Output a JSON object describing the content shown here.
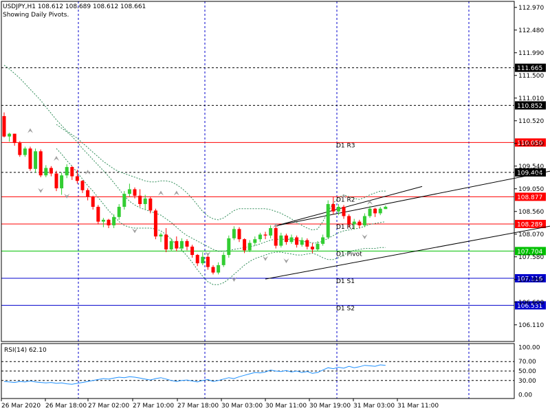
{
  "header": {
    "symbol_line": "USDJPY,H1  108.612 108.689 108.612 108.661",
    "subtitle": "Showing Daily Pivots."
  },
  "colors": {
    "bull": "#32cd32",
    "bear": "#ff0000",
    "resistance": "#ff0000",
    "pivot": "#00c000",
    "support": "#0000cc",
    "band": "#2e8b57",
    "rsi_line": "#1e90ff",
    "grid": "#0000cc",
    "fractal": "#a0a0a0"
  },
  "chart_data": [
    {
      "type": "candlestick",
      "symbol": "USDJPY",
      "timeframe": "H1",
      "title": "USDJPY,H1  108.612 108.689 108.612 108.661",
      "subtitle": "Showing Daily Pivots.",
      "ylim": [
        105.75,
        113.1
      ],
      "y_ticks": [
        "112.970",
        "112.480",
        "111.990",
        "111.500",
        "111.010",
        "110.520",
        "110.030",
        "109.540",
        "109.050",
        "108.560",
        "108.070",
        "107.580",
        "107.090",
        "106.600",
        "106.110"
      ],
      "x_ticks": [
        "26 Mar 2020",
        "26 Mar 18:00",
        "27 Mar 02:00",
        "27 Mar 10:00",
        "27 Mar 18:00",
        "30 Mar 03:00",
        "30 Mar 11:00",
        "30 Mar 19:00",
        "31 Mar 03:00",
        "31 Mar 11:00"
      ],
      "horizontal_levels": [
        {
          "label": "111.665",
          "value": 111.665,
          "style": "dashed",
          "kind": "level"
        },
        {
          "label": "110.852",
          "value": 110.852,
          "style": "dashed",
          "kind": "level"
        },
        {
          "label": "110.050",
          "value": 110.05,
          "text": "D1 R3",
          "kind": "resistance"
        },
        {
          "label": "109.404",
          "value": 109.404,
          "style": "dashed",
          "kind": "level"
        },
        {
          "label": "108.877",
          "value": 108.877,
          "text": "D1 R2",
          "kind": "resistance"
        },
        {
          "label": "108.289",
          "value": 108.289,
          "text": "D1 R1",
          "kind": "resistance"
        },
        {
          "label": "107.704",
          "value": 107.704,
          "text": "D1 Pivot",
          "kind": "pivot"
        },
        {
          "label": "107.116",
          "value": 107.116,
          "text": "D1 S1",
          "kind": "support"
        },
        {
          "label": "106.531",
          "value": 106.531,
          "text": "D1 S2",
          "kind": "support"
        }
      ],
      "candles": [
        [
          110.62,
          110.7,
          110.16,
          110.18
        ],
        [
          110.18,
          110.26,
          110.07,
          110.24
        ],
        [
          110.24,
          110.24,
          109.98,
          110.04
        ],
        [
          110.04,
          110.08,
          109.74,
          109.78
        ],
        [
          109.78,
          109.96,
          109.74,
          109.92
        ],
        [
          109.92,
          109.96,
          109.44,
          109.48
        ],
        [
          109.48,
          109.92,
          109.4,
          109.86
        ],
        [
          109.86,
          109.9,
          109.3,
          109.34
        ],
        [
          109.34,
          109.56,
          109.3,
          109.5
        ],
        [
          109.5,
          109.54,
          109.32,
          109.38
        ],
        [
          109.38,
          109.44,
          109.0,
          109.06
        ],
        [
          109.06,
          109.4,
          108.92,
          109.34
        ],
        [
          109.34,
          109.58,
          109.28,
          109.52
        ],
        [
          109.52,
          109.54,
          109.24,
          109.32
        ],
        [
          109.32,
          109.46,
          109.16,
          109.22
        ],
        [
          109.22,
          109.24,
          108.96,
          109.02
        ],
        [
          109.02,
          109.06,
          108.8,
          108.88
        ],
        [
          108.88,
          108.9,
          108.6,
          108.66
        ],
        [
          108.66,
          108.7,
          108.28,
          108.34
        ],
        [
          108.34,
          108.42,
          108.22,
          108.38
        ],
        [
          108.38,
          108.4,
          108.2,
          108.26
        ],
        [
          108.26,
          108.5,
          108.2,
          108.44
        ],
        [
          108.44,
          108.72,
          108.38,
          108.66
        ],
        [
          108.66,
          109.0,
          108.6,
          108.94
        ],
        [
          108.94,
          109.16,
          108.88,
          109.04
        ],
        [
          109.04,
          109.08,
          108.84,
          108.9
        ],
        [
          108.9,
          109.04,
          108.66,
          108.72
        ],
        [
          108.72,
          108.92,
          108.6,
          108.84
        ],
        [
          108.84,
          108.88,
          108.52,
          108.58
        ],
        [
          108.58,
          108.62,
          107.96,
          108.02
        ],
        [
          108.02,
          108.1,
          107.9,
          108.06
        ],
        [
          108.06,
          108.2,
          107.68,
          107.74
        ],
        [
          107.74,
          107.98,
          107.7,
          107.92
        ],
        [
          107.92,
          108.02,
          107.7,
          107.76
        ],
        [
          107.76,
          107.98,
          107.72,
          107.92
        ],
        [
          107.92,
          107.96,
          107.72,
          107.8
        ],
        [
          107.8,
          107.84,
          107.56,
          107.62
        ],
        [
          107.62,
          107.64,
          107.38,
          107.44
        ],
        [
          107.44,
          107.68,
          107.4,
          107.58
        ],
        [
          107.58,
          107.62,
          107.3,
          107.36
        ],
        [
          107.36,
          107.4,
          107.2,
          107.24
        ],
        [
          107.24,
          107.46,
          107.2,
          107.4
        ],
        [
          107.4,
          107.68,
          107.36,
          107.62
        ],
        [
          107.62,
          108.04,
          107.56,
          107.98
        ],
        [
          107.98,
          108.24,
          107.94,
          108.18
        ],
        [
          108.18,
          108.22,
          107.9,
          107.96
        ],
        [
          107.96,
          107.98,
          107.66,
          107.72
        ],
        [
          107.72,
          107.94,
          107.68,
          107.88
        ],
        [
          107.88,
          108.02,
          107.82,
          107.96
        ],
        [
          107.96,
          108.1,
          107.9,
          108.06
        ],
        [
          108.06,
          108.12,
          107.96,
          108.04
        ],
        [
          108.04,
          108.26,
          107.98,
          108.2
        ],
        [
          108.2,
          108.3,
          107.76,
          107.82
        ],
        [
          107.82,
          108.1,
          107.78,
          108.04
        ],
        [
          108.04,
          108.08,
          107.84,
          107.9
        ],
        [
          107.9,
          108.06,
          107.86,
          108.0
        ],
        [
          108.0,
          108.04,
          107.78,
          107.84
        ],
        [
          107.84,
          108.0,
          107.8,
          107.94
        ],
        [
          107.94,
          107.98,
          107.74,
          107.8
        ],
        [
          107.8,
          107.88,
          107.66,
          107.74
        ],
        [
          107.74,
          107.92,
          107.7,
          107.86
        ],
        [
          107.86,
          108.06,
          107.82,
          108.0
        ],
        [
          108.0,
          108.8,
          107.96,
          108.72
        ],
        [
          108.72,
          108.88,
          108.5,
          108.56
        ],
        [
          108.56,
          108.72,
          108.48,
          108.66
        ],
        [
          108.66,
          108.7,
          108.4,
          108.46
        ],
        [
          108.46,
          108.5,
          108.22,
          108.28
        ],
        [
          108.28,
          108.4,
          108.18,
          108.34
        ],
        [
          108.34,
          108.38,
          108.2,
          108.26
        ],
        [
          108.26,
          108.52,
          108.22,
          108.46
        ],
        [
          108.46,
          108.68,
          108.42,
          108.62
        ],
        [
          108.62,
          108.64,
          108.44,
          108.52
        ],
        [
          108.52,
          108.66,
          108.48,
          108.62
        ],
        [
          108.612,
          108.689,
          108.612,
          108.661
        ]
      ],
      "bollinger_upper": [
        111.72,
        111.64,
        111.54,
        111.44,
        111.32,
        111.2,
        111.08,
        110.96,
        110.82,
        110.68,
        110.54,
        110.42,
        110.3,
        110.22,
        110.14,
        110.04,
        109.94,
        109.84,
        109.74,
        109.64,
        109.56,
        109.48,
        109.42,
        109.38,
        109.34,
        109.3,
        109.26,
        109.22,
        109.2,
        109.2,
        109.22,
        109.22,
        109.2,
        109.14,
        109.06,
        108.96,
        108.84,
        108.7,
        108.56,
        108.46,
        108.4,
        108.38,
        108.42,
        108.5,
        108.58,
        108.62,
        108.62,
        108.62,
        108.62,
        108.62,
        108.62,
        108.6,
        108.56,
        108.52,
        108.46,
        108.4,
        108.32,
        108.26,
        108.2,
        108.16,
        108.18,
        108.34,
        108.56,
        108.74,
        108.86,
        108.92,
        108.88,
        108.84,
        108.82,
        108.86,
        108.92,
        108.96,
        109.0,
        109.0
      ],
      "bollinger_middle": [
        null,
        null,
        null,
        null,
        null,
        null,
        null,
        null,
        null,
        null,
        110.44,
        110.36,
        110.28,
        110.18,
        110.06,
        109.92,
        109.8,
        109.68,
        109.56,
        109.44,
        109.32,
        109.18,
        109.04,
        108.9,
        108.78,
        108.7,
        108.64,
        108.6,
        108.56,
        108.52,
        108.48,
        108.4,
        108.32,
        108.22,
        108.12,
        108.04,
        107.98,
        107.92,
        107.86,
        107.8,
        107.74,
        107.7,
        107.7,
        107.72,
        107.74,
        107.76,
        107.78,
        107.8,
        107.82,
        107.86,
        107.9,
        107.94,
        107.96,
        107.96,
        107.96,
        107.96,
        107.94,
        107.92,
        107.9,
        107.88,
        107.88,
        107.92,
        107.98,
        108.04,
        108.1,
        108.14,
        108.16,
        108.18,
        108.2,
        108.24,
        108.28,
        108.3,
        108.32,
        108.34
      ],
      "bollinger_lower": [
        null,
        null,
        null,
        null,
        null,
        null,
        null,
        null,
        null,
        null,
        109.92,
        109.8,
        109.66,
        109.54,
        109.4,
        109.26,
        109.12,
        109.0,
        108.86,
        108.72,
        108.58,
        108.46,
        108.34,
        108.26,
        108.22,
        108.2,
        108.2,
        108.2,
        108.2,
        108.18,
        108.14,
        108.06,
        107.96,
        107.84,
        107.72,
        107.6,
        107.46,
        107.3,
        107.16,
        107.04,
        106.98,
        106.98,
        107.02,
        107.1,
        107.2,
        107.3,
        107.4,
        107.48,
        107.54,
        107.58,
        107.62,
        107.66,
        107.68,
        107.68,
        107.66,
        107.64,
        107.62,
        107.62,
        107.64,
        107.66,
        107.62,
        107.56,
        107.52,
        107.52,
        107.56,
        107.62,
        107.68,
        107.72,
        107.74,
        107.76,
        107.76,
        107.76,
        107.78,
        107.78
      ],
      "fractal_up": [
        [
          5,
          110.3
        ],
        [
          10,
          109.7
        ],
        [
          16,
          109.4
        ],
        [
          30,
          108.95
        ],
        [
          33,
          108.95
        ],
        [
          52,
          108.25
        ],
        [
          65,
          108.88
        ],
        [
          70,
          108.75
        ]
      ],
      "fractal_down": [
        [
          7,
          109.02
        ],
        [
          12,
          108.9
        ],
        [
          25,
          108.15
        ],
        [
          39,
          107.65
        ],
        [
          44,
          107.1
        ],
        [
          50,
          107.55
        ],
        [
          54,
          107.5
        ],
        [
          69,
          108.02
        ]
      ],
      "trendlines": [
        {
          "from": [
            52,
            108.25
          ],
          "to": [
            112,
            109.6
          ]
        },
        {
          "from": [
            52,
            108.25
          ],
          "to": [
            80,
            109.1
          ]
        },
        {
          "from": [
            50,
            107.1
          ],
          "to": [
            112,
            108.4
          ]
        }
      ]
    },
    {
      "type": "line",
      "title": "RSI(14) 62.10",
      "ylim": [
        -8,
        108
      ],
      "y_ticks": [
        "100.00",
        "70.00",
        "50.00",
        "30.00",
        "0.00"
      ],
      "levels": [
        70,
        50,
        30
      ],
      "values": [
        28,
        27,
        26,
        28,
        27,
        29,
        27,
        26,
        25,
        26,
        24,
        25,
        23,
        22,
        24,
        26,
        28,
        30,
        32,
        34,
        33,
        35,
        37,
        36,
        38,
        37,
        35,
        33,
        31,
        34,
        36,
        33,
        30,
        28,
        30,
        31,
        29,
        27,
        30,
        32,
        28,
        30,
        33,
        36,
        34,
        38,
        41,
        44,
        47,
        46,
        48,
        52,
        50,
        49,
        51,
        48,
        50,
        47,
        49,
        45,
        47,
        52,
        57,
        55,
        58,
        56,
        60,
        57,
        59,
        62,
        61,
        60,
        63,
        62.1
      ]
    }
  ]
}
